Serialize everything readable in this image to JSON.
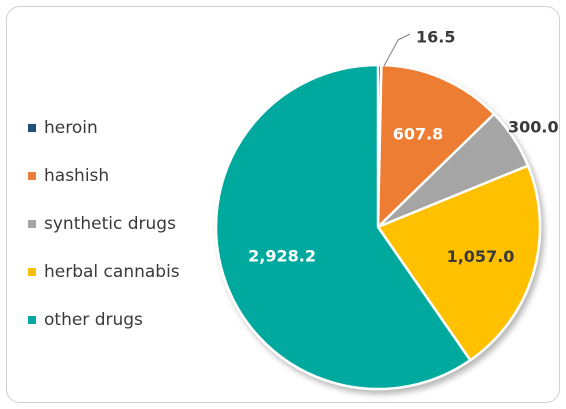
{
  "chart_data": {
    "type": "pie",
    "series": [
      {
        "name": "heroin",
        "value": 16.5,
        "label": "16.5",
        "color": "#1f4e79"
      },
      {
        "name": "hashish",
        "value": 607.8,
        "label": "607.8",
        "color": "#ed7d31"
      },
      {
        "name": "synthetic drugs",
        "value": 300.0,
        "label": "300.0",
        "color": "#a5a5a5"
      },
      {
        "name": "herbal cannabis",
        "value": 1057.0,
        "label": "1,057.0",
        "color": "#ffc000"
      },
      {
        "name": "other drugs",
        "value": 2928.2,
        "label": "2,928.2",
        "color": "#00a99d"
      }
    ],
    "legend_position": "left",
    "start_angle_deg": 0,
    "direction": "clockwise"
  }
}
